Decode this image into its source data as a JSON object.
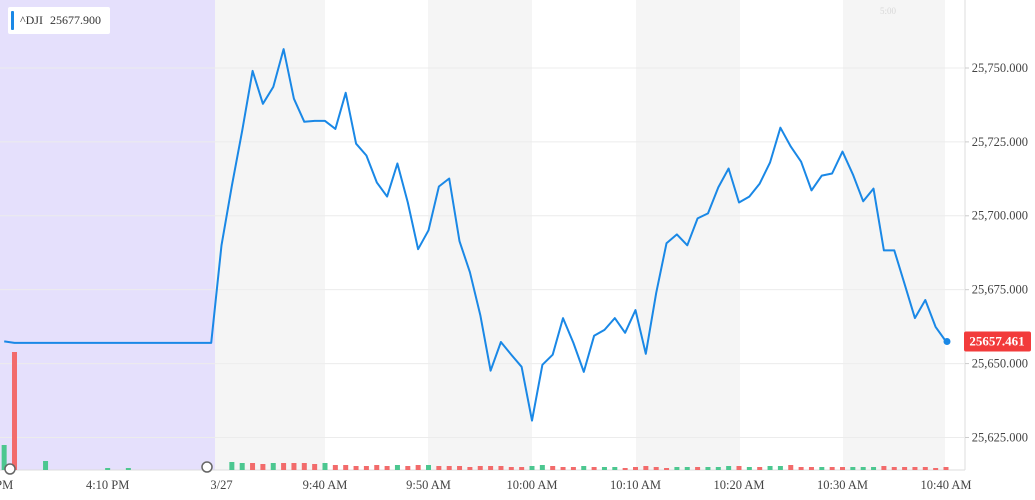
{
  "chart_data": {
    "type": "line",
    "header_value": "25677.900",
    "watermark": "5:00",
    "categories": [
      "PM",
      null,
      null,
      null,
      null,
      null,
      null,
      null,
      null,
      null,
      "4:10 PM",
      null,
      null,
      null,
      null,
      null,
      null,
      null,
      null,
      null,
      null,
      "3/27",
      null,
      null,
      null,
      null,
      null,
      null,
      null,
      null,
      null,
      "9:40 AM",
      null,
      null,
      null,
      null,
      null,
      null,
      null,
      null,
      null,
      "9:50 AM",
      null,
      null,
      null,
      null,
      null,
      null,
      null,
      null,
      null,
      "10:00 AM",
      null,
      null,
      null,
      null,
      null,
      null,
      null,
      null,
      null,
      "10:10 AM",
      null,
      null,
      null,
      null,
      null,
      null,
      null,
      null,
      null,
      "10:20 AM",
      null,
      null,
      null,
      null,
      null,
      null,
      null,
      null,
      null,
      "10:30 AM",
      null,
      null,
      null,
      null,
      null,
      null,
      null,
      null,
      null,
      "10:40 AM"
    ],
    "series": [
      {
        "name": "^DJI",
        "color": "#1a88e6",
        "values": [
          25657.5,
          25657.0,
          25657.0,
          25657.0,
          25657.0,
          25657.0,
          25657.0,
          25657.0,
          25657.0,
          25657.0,
          25657.0,
          25657.0,
          25657.0,
          25657.0,
          25657.0,
          25657.0,
          25657.0,
          25657.0,
          25657.0,
          25657.0,
          25657.0,
          25690.0,
          25710.2,
          25728.8,
          25749.0,
          25737.9,
          25743.6,
          25756.4,
          25739.6,
          25731.8,
          25732.1,
          25732.1,
          25729.4,
          25741.6,
          25724.4,
          25720.4,
          25711.3,
          25706.5,
          25717.7,
          25704.5,
          25688.7,
          25695.1,
          25709.9,
          25712.6,
          25691.4,
          25680.9,
          25666.4,
          25647.6,
          25657.3,
          25653.0,
          25648.9,
          25630.7,
          25649.6,
          25653.0,
          25665.4,
          25657.0,
          25647.2,
          25659.4,
          25661.4,
          25665.4,
          25660.4,
          25668.1,
          25653.3,
          25673.9,
          25690.7,
          25693.7,
          25690.0,
          25699.1,
          25700.8,
          25709.6,
          25716.0,
          25704.5,
          25706.5,
          25710.9,
          25718.0,
          25729.8,
          25723.4,
          25718.3,
          25708.6,
          25713.6,
          25714.3,
          25721.7,
          25714.0,
          25704.9,
          25709.2,
          25688.3,
          25688.3,
          25676.9,
          25665.4,
          25671.5,
          25662.4,
          25657.461
        ]
      }
    ],
    "volume": {
      "values": [
        25,
        118,
        null,
        null,
        9,
        null,
        null,
        null,
        null,
        null,
        2,
        null,
        2,
        null,
        null,
        null,
        null,
        null,
        null,
        null,
        null,
        null,
        8,
        7,
        7,
        6,
        7,
        7,
        7,
        7,
        6,
        7,
        5,
        5,
        4,
        4,
        5,
        4,
        5,
        4,
        5,
        5,
        4,
        4,
        4,
        3,
        4,
        4,
        4,
        3,
        3,
        4,
        5,
        4,
        3,
        3,
        4,
        3,
        3,
        3,
        2,
        3,
        4,
        3,
        2,
        3,
        3,
        3,
        3,
        3,
        4,
        4,
        3,
        3,
        4,
        4,
        5,
        3,
        3,
        3,
        3,
        3,
        3,
        3,
        3,
        4,
        3,
        3,
        3,
        3,
        2,
        3
      ],
      "colors": [
        "#4cc790",
        "#f26b6b",
        null,
        null,
        "#4cc790",
        null,
        null,
        null,
        null,
        null,
        "#4cc790",
        null,
        "#4cc790",
        null,
        null,
        null,
        null,
        null,
        null,
        null,
        null,
        null,
        "#4cc790",
        "#4cc790",
        "#f26b6b",
        "#f26b6b",
        "#4cc790",
        "#f26b6b",
        "#f26b6b",
        "#f26b6b",
        "#f26b6b",
        "#4cc790",
        "#f26b6b",
        "#f26b6b",
        "#f26b6b",
        "#f26b6b",
        "#f26b6b",
        "#f26b6b",
        "#4cc790",
        "#f26b6b",
        "#f26b6b",
        "#4cc790",
        "#f26b6b",
        "#f26b6b",
        "#f26b6b",
        "#f26b6b",
        "#f26b6b",
        "#f26b6b",
        "#f26b6b",
        "#f26b6b",
        "#f26b6b",
        "#4cc790",
        "#4cc790",
        "#f26b6b",
        "#f26b6b",
        "#f26b6b",
        "#4cc790",
        "#f26b6b",
        "#4cc790",
        "#4cc790",
        "#f26b6b",
        "#f26b6b",
        "#f26b6b",
        "#f26b6b",
        "#f26b6b",
        "#4cc790",
        "#4cc790",
        "#f26b6b",
        "#4cc790",
        "#4cc790",
        "#4cc790",
        "#f26b6b",
        "#4cc790",
        "#f26b6b",
        "#4cc790",
        "#4cc790",
        "#f26b6b",
        "#f26b6b",
        "#f26b6b",
        "#4cc790",
        "#f26b6b",
        "#f26b6b",
        "#4cc790",
        "#4cc790",
        "#4cc790",
        "#f26b6b",
        "#f26b6b",
        "#f26b6b",
        "#f26b6b",
        "#f26b6b",
        "#f26b6b",
        "#f26b6b"
      ],
      "y2lim": [
        0,
        120
      ]
    },
    "ylim": [
      25614,
      25773
    ],
    "yticks": [
      {
        "value": 25625,
        "label": "25,625.000"
      },
      {
        "value": 25650,
        "label": "25,650.000"
      },
      {
        "value": 25675,
        "label": "25,675.000"
      },
      {
        "value": 25700,
        "label": "25,700.000"
      },
      {
        "value": 25725,
        "label": "25,725.000"
      },
      {
        "value": 25750,
        "label": "25,750.000"
      }
    ],
    "grid": true,
    "last_tag_color": "#f23b3b"
  }
}
